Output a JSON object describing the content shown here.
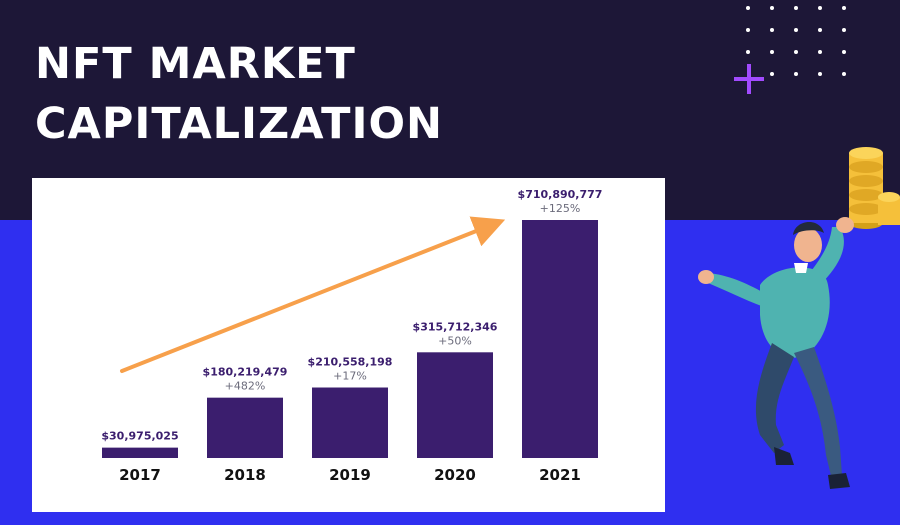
{
  "title": {
    "line1": "NFT MARKET",
    "line2": "CAPITALIZATION"
  },
  "colors": {
    "bar": "#3b1e6e",
    "arrow": "#f7a04b",
    "top_bg": "#1d1737",
    "bottom_bg": "#2f2ff0",
    "label": "#3b1e6e",
    "growth": "#6b6b7b"
  },
  "chart_data": {
    "type": "bar",
    "title": "NFT MARKET CAPITALIZATION",
    "xlabel": "",
    "ylabel": "",
    "categories": [
      "2017",
      "2018",
      "2019",
      "2020",
      "2021"
    ],
    "values": [
      30975025,
      180219479,
      210558198,
      315712346,
      710890777
    ],
    "value_labels": [
      "$30,975,025",
      "$180,219,479",
      "$210,558,198",
      "$315,712,346",
      "$710,890,777"
    ],
    "growth_labels": [
      "",
      "+482%",
      "+17%",
      "+50%",
      "+125%"
    ],
    "ylim": [
      0,
      710890777
    ],
    "grid": false,
    "legend": "none",
    "annotation": "upward trend arrow"
  }
}
